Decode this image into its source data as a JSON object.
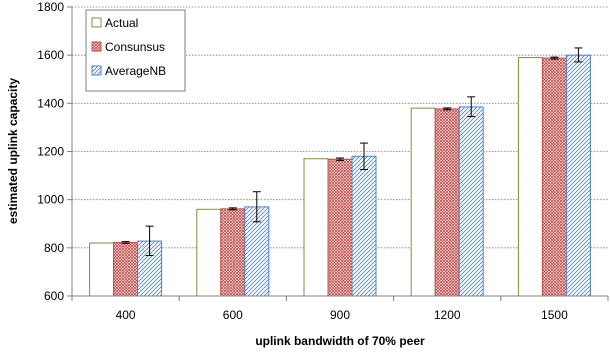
{
  "chart_data": {
    "type": "bar",
    "categories": [
      "400",
      "600",
      "900",
      "1200",
      "1500"
    ],
    "series": [
      {
        "name": "Actual",
        "color": "#77933C",
        "values": [
          820,
          960,
          1170,
          1380,
          1590
        ]
      },
      {
        "name": "Consunsus",
        "color": "#C0504D",
        "values": [
          822,
          962,
          1168,
          1377,
          1588
        ],
        "err_low": [
          818,
          958,
          1163,
          1373,
          1584
        ],
        "err_high": [
          826,
          966,
          1173,
          1381,
          1592
        ]
      },
      {
        "name": "AverageNB",
        "color": "#4F81BD",
        "values": [
          828,
          970,
          1180,
          1385,
          1600
        ],
        "err_low": [
          768,
          908,
          1125,
          1345,
          1572
        ],
        "err_high": [
          890,
          1033,
          1235,
          1427,
          1630
        ]
      }
    ],
    "xlabel": "uplink bandwidth of 70% peer",
    "ylabel": "estimated uplink capacity",
    "ylim": [
      600,
      1800
    ],
    "yticks": [
      "600",
      "800",
      "1000",
      "1200",
      "1400",
      "1600",
      "1800"
    ],
    "grid": true,
    "legend_position": "top-left"
  }
}
